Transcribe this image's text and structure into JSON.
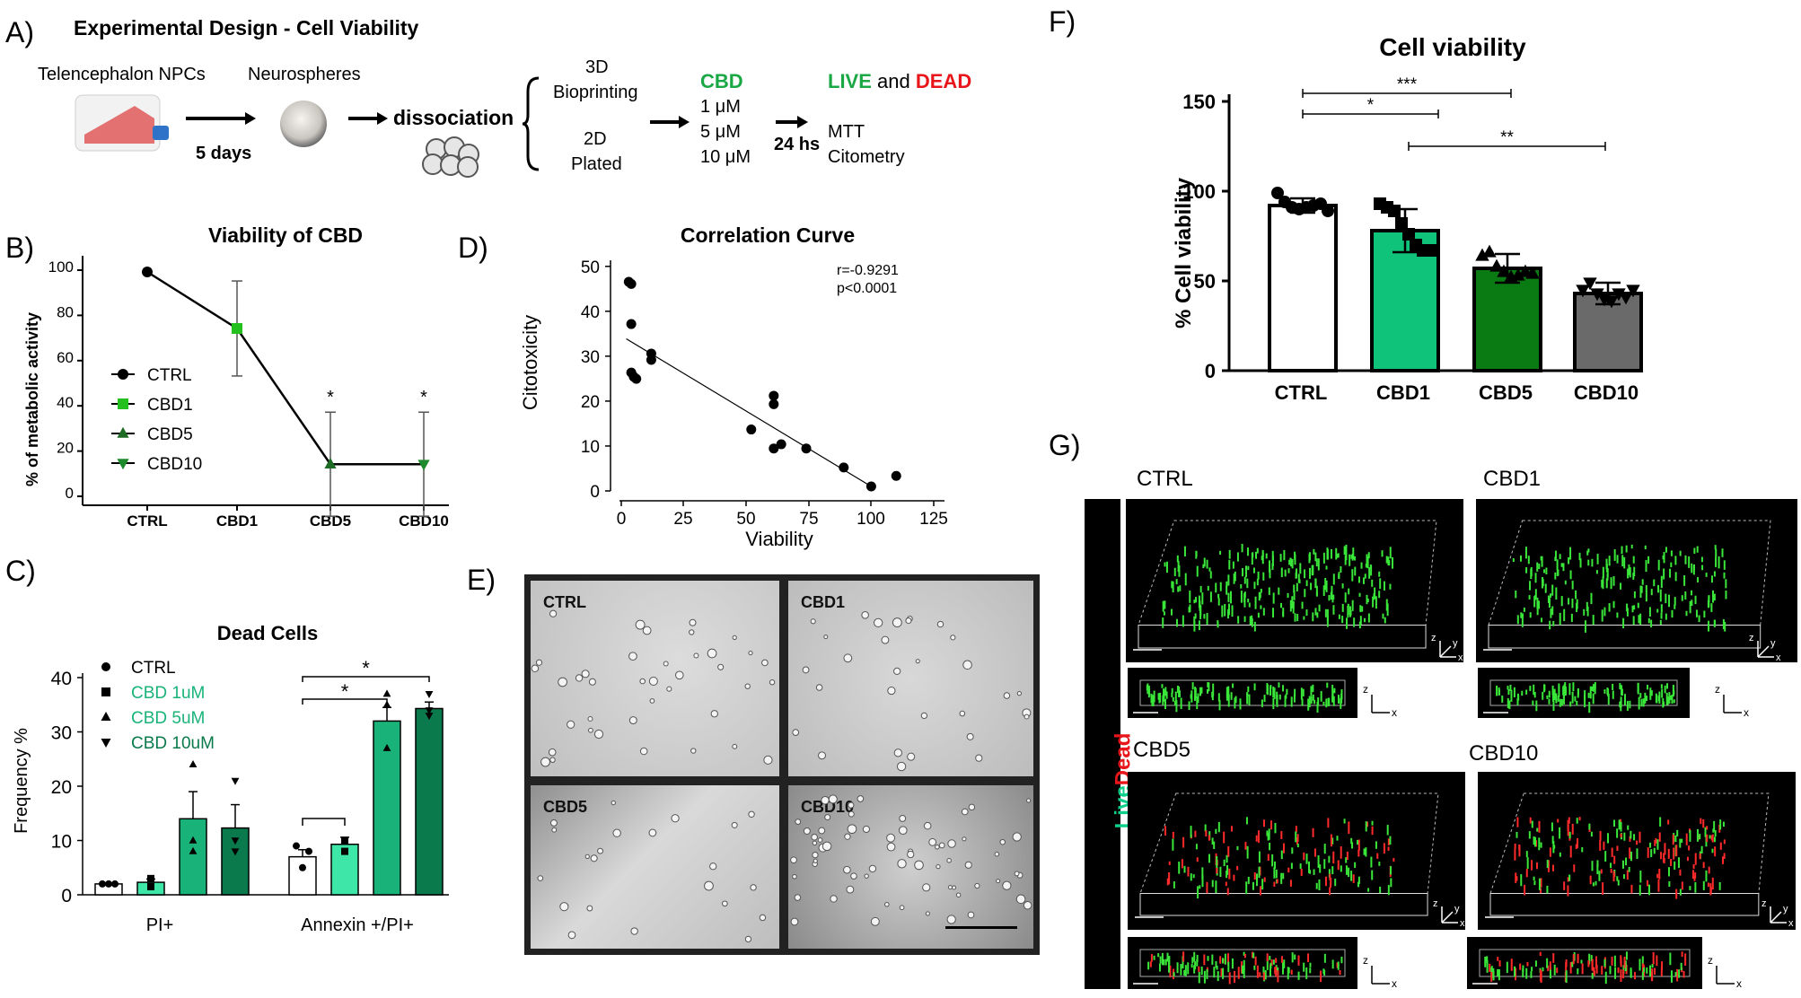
{
  "panel_a": {
    "letter": "A)",
    "title": "Experimental Design - Cell Viability",
    "npcs": "Telencephalon NPCs",
    "neurospheres": "Neurospheres",
    "days": "5 days",
    "dissociation": "dissociation",
    "bioprinting_line1": "3D",
    "bioprinting_line2": "Bioprinting",
    "plated_line1": "2D",
    "plated_line2": "Plated",
    "cbd": "CBD",
    "dose1": "1 μM",
    "dose2": "5 μM",
    "dose3": "10 μM",
    "hours": "24 hs",
    "live": "LIVE",
    "and": "and",
    "dead": "DEAD",
    "mtt": "MTT",
    "citometry": "Citometry"
  },
  "panel_b": {
    "letter": "B)",
    "title": "Viability of CBD",
    "ylabel": "% of metabolic activity",
    "legend": [
      "CTRL",
      "CBD1",
      "CBD5",
      "CBD10"
    ],
    "ticks_y": [
      "0",
      "20",
      "40",
      "60",
      "80",
      "100"
    ],
    "star": "*"
  },
  "panel_c": {
    "letter": "C)",
    "title": "Dead Cells",
    "ylabel": "Frequency %",
    "ticks_y": [
      "0",
      "10",
      "20",
      "30",
      "40"
    ],
    "groups": [
      "PI+",
      "Annexin +/PI+"
    ],
    "legend": [
      "CTRL",
      "CBD 1uM",
      "CBD 5uM",
      "CBD 10uM"
    ],
    "star": "*"
  },
  "panel_d": {
    "letter": "D)",
    "title": "Correlation Curve",
    "xlabel": "Viability",
    "ylabel": "Citotoxicity",
    "r": "r=-0.9291",
    "p": "p<0.0001",
    "ticks_x": [
      "0",
      "25",
      "50",
      "75",
      "100",
      "125"
    ],
    "ticks_y": [
      "0",
      "10",
      "20",
      "30",
      "40",
      "50"
    ]
  },
  "panel_e": {
    "letter": "E)",
    "labels": [
      "CTRL",
      "CBD1",
      "CBD5",
      "CBD10"
    ]
  },
  "panel_f": {
    "letter": "F)",
    "title": "Cell viability",
    "ylabel": "% Cell viability",
    "ticks_y": [
      "0",
      "50",
      "100",
      "150"
    ],
    "categories": [
      "CTRL",
      "CBD1",
      "CBD5",
      "CBD10"
    ],
    "stars": [
      "***",
      "*",
      "**"
    ]
  },
  "panel_g": {
    "letter": "G)",
    "labels": [
      "CTRL",
      "CBD1",
      "CBD5",
      "CBD10"
    ],
    "live": "Live",
    "dead": "Dead",
    "axis_z": "z",
    "axis_y": "y",
    "axis_x": "x"
  },
  "colors": {
    "green_label": "#1aa845",
    "red_label": "#e8161b",
    "cbd1": "#0fc47a",
    "cbd5": "#0a7a12",
    "cbd10": "#6a6a6a",
    "c_cbd1": "#3ee6a8",
    "c_cbd5": "#19b37a",
    "c_cbd10": "#0a7a4c"
  },
  "chart_data": [
    {
      "panel": "B",
      "type": "line",
      "title": "Viability of CBD",
      "ylabel": "% of metabolic activity",
      "categories": [
        "CTRL",
        "CBD1",
        "CBD5",
        "CBD10"
      ],
      "values": [
        100,
        75,
        15,
        15
      ],
      "error": [
        0,
        21,
        23,
        23
      ],
      "ylim": [
        0,
        100
      ],
      "significance": [
        "",
        "",
        "*",
        "*"
      ]
    },
    {
      "panel": "C",
      "type": "bar",
      "title": "Dead Cells",
      "ylabel": "Frequency %",
      "categories": [
        "PI+",
        "Annexin +/PI+"
      ],
      "series": [
        {
          "name": "CTRL",
          "values": [
            2,
            7
          ],
          "error": [
            0.2,
            1.3
          ],
          "points": [
            [
              2,
              2,
              2
            ],
            [
              9,
              5,
              8
            ]
          ]
        },
        {
          "name": "CBD 1uM",
          "values": [
            2.3,
            9.3
          ],
          "error": [
            0.6,
            1.3
          ],
          "points": [
            [
              3,
              1.5,
              1.5
            ],
            [
              8,
              10,
              10
            ]
          ]
        },
        {
          "name": "CBD 5uM",
          "values": [
            14,
            32
          ],
          "error": [
            5,
            2.5
          ],
          "points": [
            [
              24,
              10,
              8
            ],
            [
              37,
              35,
              27
            ]
          ]
        },
        {
          "name": "CBD 10uM",
          "values": [
            12.3,
            34.3
          ],
          "error": [
            4.3,
            1.2
          ],
          "points": [
            [
              21,
              10,
              8
            ],
            [
              37,
              34,
              33
            ]
          ]
        }
      ],
      "ylim": [
        0,
        40
      ]
    },
    {
      "panel": "D",
      "type": "scatter",
      "title": "Correlation Curve",
      "xlabel": "Viability",
      "ylabel": "Citotoxicity",
      "x": [
        3,
        4,
        4,
        4,
        5,
        6,
        12,
        12,
        52,
        61,
        61,
        61,
        64,
        74,
        89,
        100,
        110
      ],
      "y": [
        48.5,
        48,
        38.5,
        27,
        26,
        25.5,
        31.5,
        30,
        13.5,
        21.5,
        19.5,
        9,
        10,
        9,
        4.5,
        0,
        2.5
      ],
      "fit": {
        "x": [
          0,
          100
        ],
        "y": [
          35,
          0
        ]
      },
      "xlim": [
        0,
        125
      ],
      "ylim": [
        0,
        50
      ]
    },
    {
      "panel": "F",
      "type": "bar",
      "title": "Cell viability",
      "ylabel": "% Cell viability",
      "categories": [
        "CTRL",
        "CBD1",
        "CBD5",
        "CBD10"
      ],
      "values": [
        92,
        78,
        57,
        43
      ],
      "error": [
        4,
        12,
        8,
        6
      ],
      "points": [
        [
          99,
          94,
          91,
          90,
          91,
          92,
          93,
          89
        ],
        [
          93,
          91,
          89,
          82,
          76,
          70,
          67,
          67
        ],
        [
          64,
          66,
          58,
          55,
          52,
          53,
          55,
          54
        ],
        [
          45,
          49,
          43,
          40,
          39,
          43,
          41,
          45
        ]
      ],
      "ylim": [
        0,
        150
      ]
    }
  ]
}
